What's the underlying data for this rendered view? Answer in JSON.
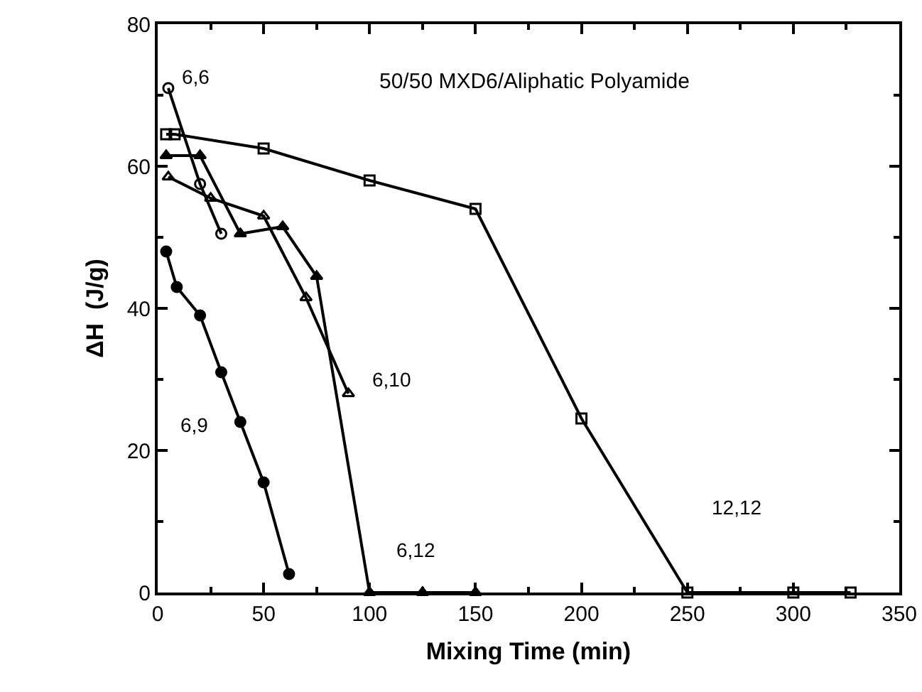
{
  "chart_data": {
    "type": "line",
    "title": "50/50 MXD6/Aliphatic Polyamide",
    "xlabel": "Mixing Time (min)",
    "ylabel": "ΔH  (J/g)",
    "xlim": [
      0,
      350
    ],
    "xticks": [
      0,
      50,
      100,
      150,
      200,
      250,
      300,
      350
    ],
    "ylim": [
      0,
      80
    ],
    "yticks": [
      0,
      20,
      40,
      60,
      80
    ],
    "grid": false,
    "legend": false,
    "line_style": "solid",
    "series": [
      {
        "name": "6,6",
        "color": "#000000",
        "marker": "circle-open",
        "x": [
          5,
          20,
          30
        ],
        "values": [
          71,
          57.5,
          50.5
        ]
      },
      {
        "name": "6,9",
        "color": "#000000",
        "marker": "circle",
        "x": [
          4,
          9,
          20,
          30,
          39,
          50,
          62
        ],
        "values": [
          48,
          43,
          39,
          31,
          24,
          15.5,
          2.6
        ]
      },
      {
        "name": "6,10",
        "color": "#000000",
        "marker": "triangle-open",
        "x": [
          5,
          25,
          50,
          70,
          90
        ],
        "values": [
          58.5,
          55.5,
          53,
          41.5,
          28
        ]
      },
      {
        "name": "6,12",
        "color": "#000000",
        "marker": "triangle",
        "x": [
          4,
          20,
          39,
          59,
          75,
          100,
          125,
          150
        ],
        "values": [
          61.5,
          61.5,
          50.5,
          51.5,
          44.5,
          0,
          0,
          0
        ]
      },
      {
        "name": "12,12",
        "color": "#000000",
        "marker": "square-open",
        "x": [
          4,
          8,
          50,
          100,
          150,
          200,
          250,
          300,
          327
        ],
        "values": [
          64.5,
          64.5,
          62.5,
          58,
          54,
          24.5,
          0,
          0,
          0
        ]
      }
    ]
  }
}
